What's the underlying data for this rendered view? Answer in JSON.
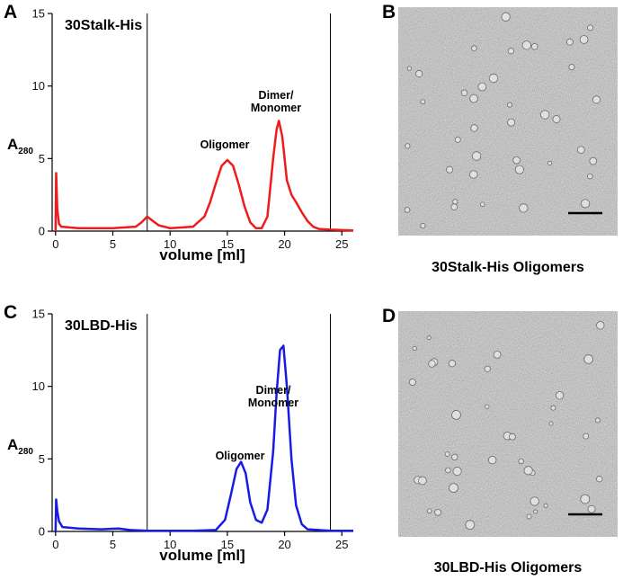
{
  "chart_data": [
    {
      "type": "line",
      "panel": "A",
      "inset_label": "30Stalk-His",
      "x_label": "volume [ml]",
      "y_label": {
        "main": "A",
        "sub": "280"
      },
      "x": [
        0,
        0.05,
        0.15,
        0.3,
        0.5,
        2,
        5,
        7,
        7.5,
        8,
        8.5,
        9,
        10,
        12,
        13,
        13.5,
        14,
        14.5,
        15,
        15.5,
        16,
        16.5,
        17,
        17.5,
        18,
        18.5,
        19,
        19.3,
        19.5,
        19.8,
        20.2,
        20.6,
        21,
        21.5,
        22,
        22.5,
        23,
        24,
        26
      ],
      "series": [
        {
          "color": "#ee1c1c",
          "values": [
            0,
            4,
            1.5,
            0.5,
            0.3,
            0.2,
            0.2,
            0.3,
            0.6,
            1.0,
            0.7,
            0.4,
            0.2,
            0.3,
            1.0,
            2.0,
            3.3,
            4.5,
            4.9,
            4.5,
            3.2,
            1.7,
            0.6,
            0.2,
            0.2,
            1.0,
            5.0,
            7.0,
            7.6,
            6.5,
            3.5,
            2.5,
            2.0,
            1.3,
            0.7,
            0.3,
            0.15,
            0.1,
            0.05
          ]
        }
      ],
      "xlim": [
        -0.3,
        26
      ],
      "ylim": [
        0,
        15
      ],
      "xticks": [
        0,
        5,
        10,
        15,
        20,
        25
      ],
      "yticks": [
        0,
        5,
        10,
        15
      ],
      "vlines": [
        8,
        24
      ],
      "annotations": [
        [
          "Oligomer"
        ],
        [
          "Dimer/",
          "Monomer"
        ]
      ]
    },
    {
      "type": "line",
      "panel": "C",
      "inset_label": "30LBD-His",
      "x_label": "volume [ml]",
      "y_label": {
        "main": "A",
        "sub": "280"
      },
      "x": [
        0,
        0.05,
        0.15,
        0.3,
        0.6,
        2,
        4,
        5.5,
        6.5,
        8,
        12,
        14,
        14.8,
        15.3,
        15.8,
        16.2,
        16.6,
        17,
        17.5,
        18,
        18.5,
        19,
        19.3,
        19.6,
        19.9,
        20.2,
        20.6,
        21,
        21.5,
        22,
        24,
        26
      ],
      "series": [
        {
          "color": "#1a1ae6",
          "values": [
            0,
            2.2,
            1.4,
            0.7,
            0.3,
            0.2,
            0.15,
            0.2,
            0.1,
            0.05,
            0.05,
            0.1,
            0.8,
            2.5,
            4.3,
            4.8,
            4.0,
            2.0,
            0.8,
            0.6,
            1.5,
            5.5,
            9.5,
            12.5,
            12.8,
            10,
            5,
            1.8,
            0.5,
            0.15,
            0.05,
            0.05
          ]
        }
      ],
      "xlim": [
        -0.3,
        26
      ],
      "ylim": [
        0,
        15
      ],
      "xticks": [
        0,
        5,
        10,
        15,
        20,
        25
      ],
      "yticks": [
        0,
        5,
        10,
        15
      ],
      "vlines": [
        8,
        24
      ],
      "annotations": [
        [
          "Oligomer"
        ],
        [
          "Dimer/",
          "Monomer"
        ]
      ]
    }
  ],
  "micrographs": [
    {
      "panel": "B",
      "caption": "30Stalk-His Oligomers"
    },
    {
      "panel": "D",
      "caption": "30LBD-His Oligomers"
    }
  ]
}
